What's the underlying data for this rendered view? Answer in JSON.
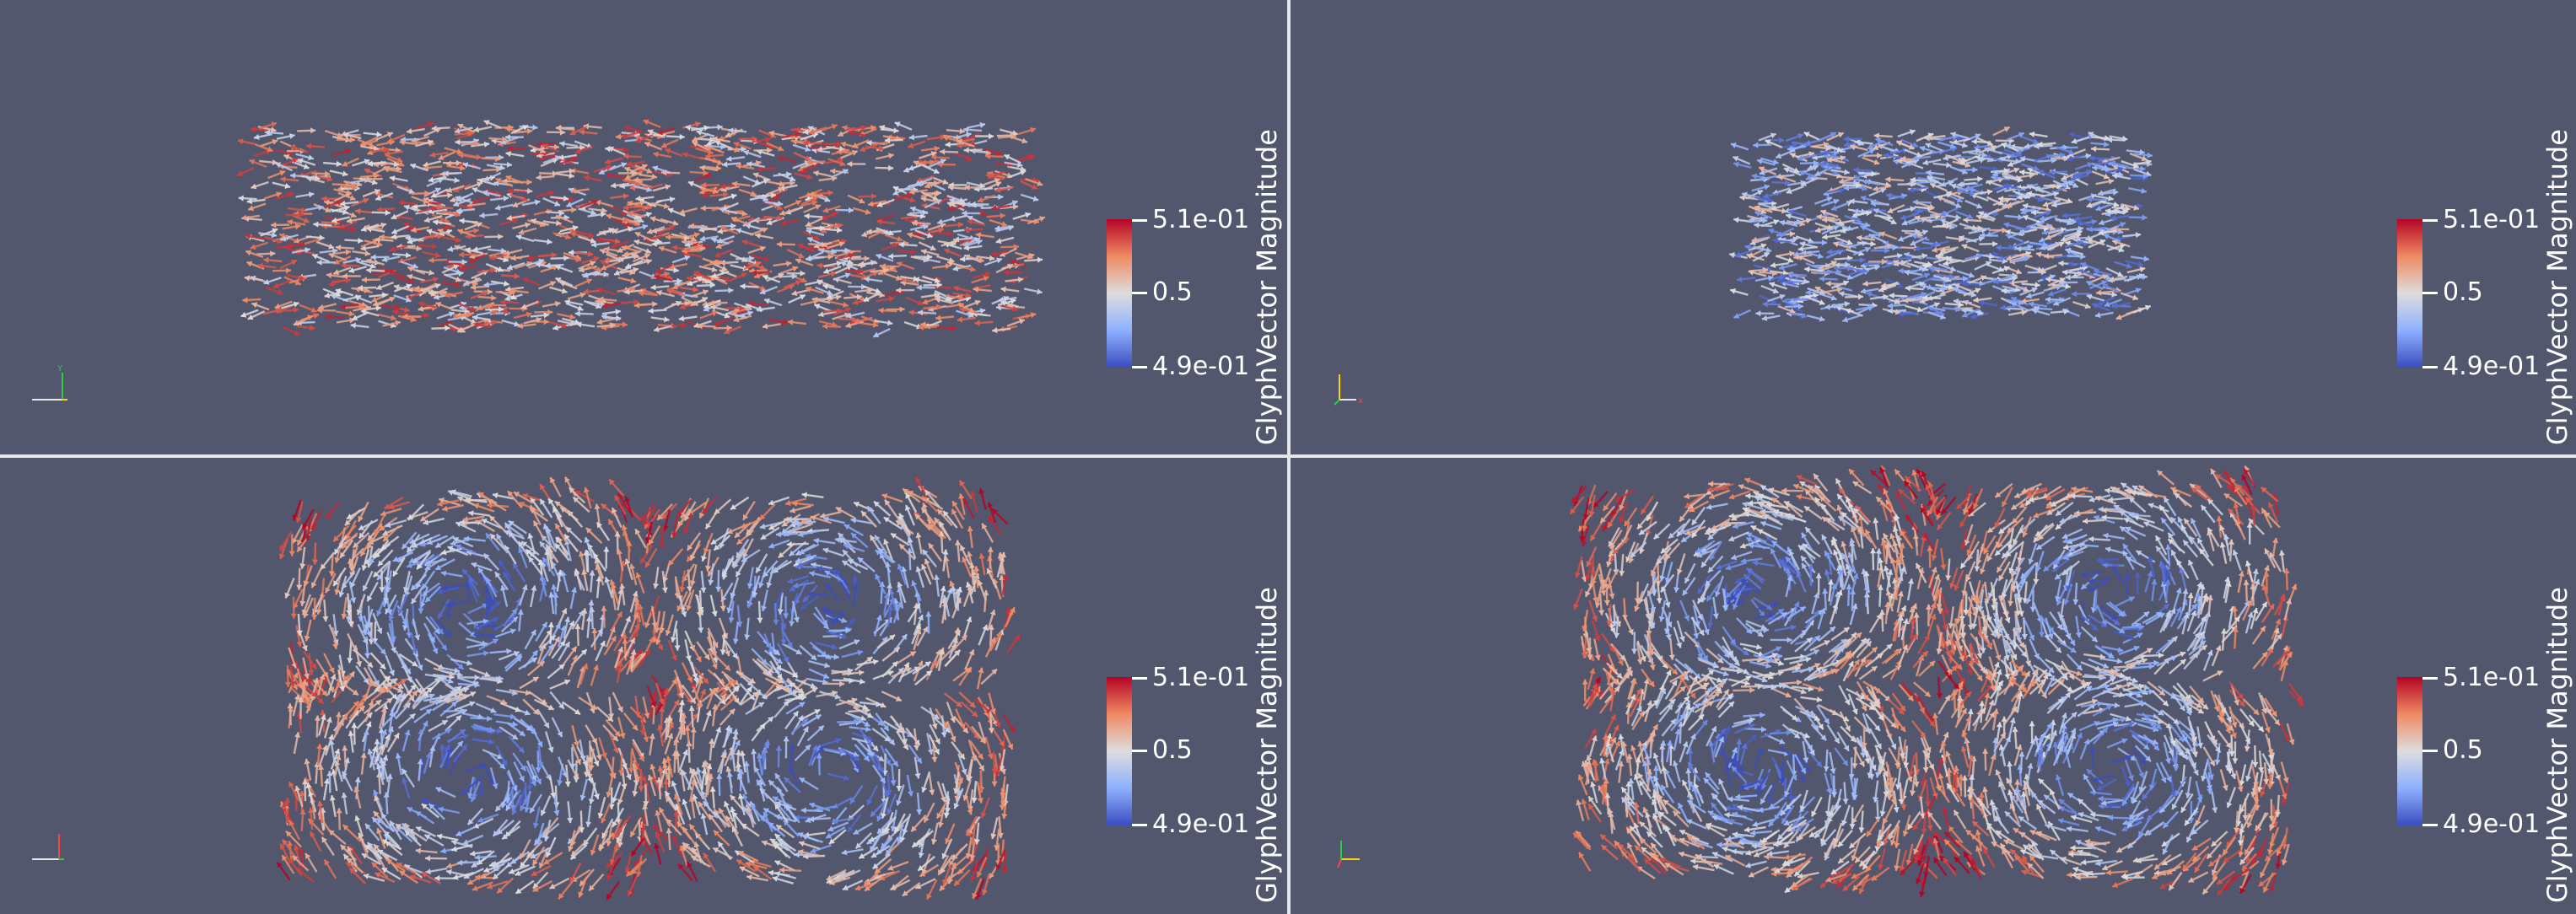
{
  "app": {
    "name": "ParaView render view"
  },
  "colors": {
    "background": "#52576e",
    "divider": "#e6e6e6",
    "cmap_high": "#b40426",
    "cmap_mid": "#dddddd",
    "cmap_low": "#3b4cc0"
  },
  "views": [
    {
      "id": "top-left",
      "colorbar": {
        "title": "GlyphVector Magnitude",
        "max_label": "5.1e-01",
        "mid_label": "0.5",
        "min_label": "4.9e-01"
      },
      "orientation_axes": {
        "icon": "axes-triad-icon"
      }
    },
    {
      "id": "top-right",
      "colorbar": {
        "title": "GlyphVector Magnitude",
        "max_label": "5.1e-01",
        "mid_label": "0.5",
        "min_label": "4.9e-01"
      },
      "orientation_axes": {
        "icon": "axes-triad-icon"
      }
    },
    {
      "id": "bottom-left",
      "colorbar": {
        "title": "GlyphVector Magnitude",
        "max_label": "5.1e-01",
        "mid_label": "0.5",
        "min_label": "4.9e-01"
      },
      "orientation_axes": {
        "icon": "axes-triad-icon"
      }
    },
    {
      "id": "bottom-right",
      "colorbar": {
        "title": "GlyphVector Magnitude",
        "max_label": "5.1e-01",
        "mid_label": "0.5",
        "min_label": "4.9e-01"
      },
      "orientation_axes": {
        "icon": "axes-triad-icon"
      }
    }
  ]
}
